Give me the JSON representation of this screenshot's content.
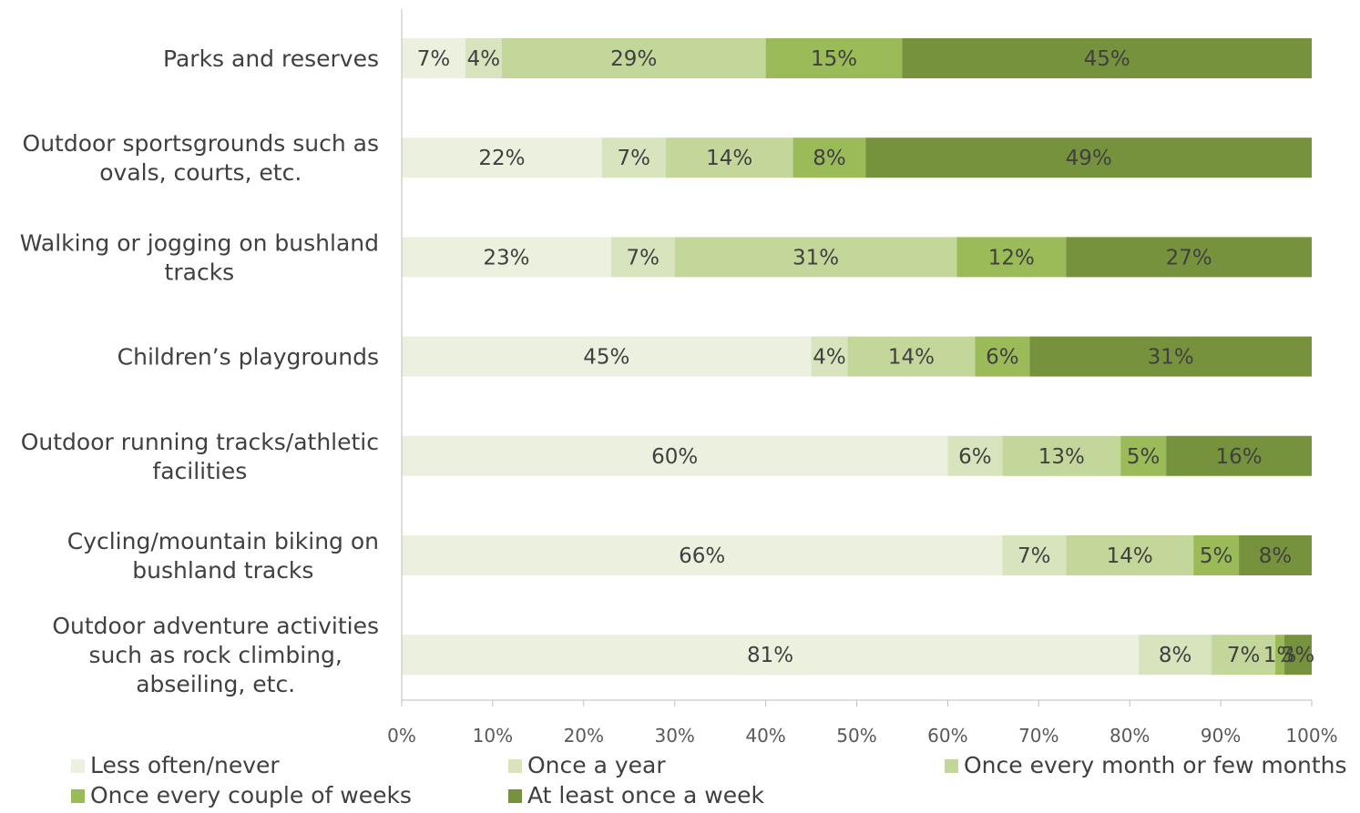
{
  "chart_data": {
    "type": "bar",
    "orientation": "horizontal",
    "stacked": true,
    "title": "",
    "xlabel": "",
    "ylabel": "",
    "xlim": [
      0,
      100
    ],
    "x_ticks": [
      "0%",
      "10%",
      "20%",
      "30%",
      "40%",
      "50%",
      "60%",
      "70%",
      "80%",
      "90%",
      "100%"
    ],
    "grid": false,
    "legend_position": "bottom",
    "categories": [
      [
        "Parks and reserves"
      ],
      [
        "Outdoor sportsgrounds such as",
        "ovals, courts, etc."
      ],
      [
        "Walking or jogging on bushland",
        "tracks"
      ],
      [
        "Children’s playgrounds"
      ],
      [
        "Outdoor running tracks/athletic",
        "facilities"
      ],
      [
        "Cycling/mountain biking on",
        "bushland tracks"
      ],
      [
        "Outdoor adventure activities",
        "such as rock climbing,",
        "abseiling, etc."
      ]
    ],
    "series": [
      {
        "name": "Less often/never",
        "color": "#ebf1de",
        "values": [
          7,
          22,
          23,
          45,
          60,
          66,
          81
        ]
      },
      {
        "name": "Once a year",
        "color": "#d7e4bd",
        "values": [
          4,
          7,
          7,
          4,
          6,
          7,
          8
        ]
      },
      {
        "name": "Once every month or few months",
        "color": "#c4d79b",
        "values": [
          29,
          14,
          31,
          14,
          13,
          14,
          7
        ]
      },
      {
        "name": "Once every couple of weeks",
        "color": "#9bbb59",
        "values": [
          15,
          8,
          12,
          6,
          5,
          5,
          1
        ]
      },
      {
        "name": "At least once a week",
        "color": "#76923c",
        "values": [
          45,
          49,
          27,
          31,
          16,
          8,
          3
        ]
      }
    ]
  }
}
